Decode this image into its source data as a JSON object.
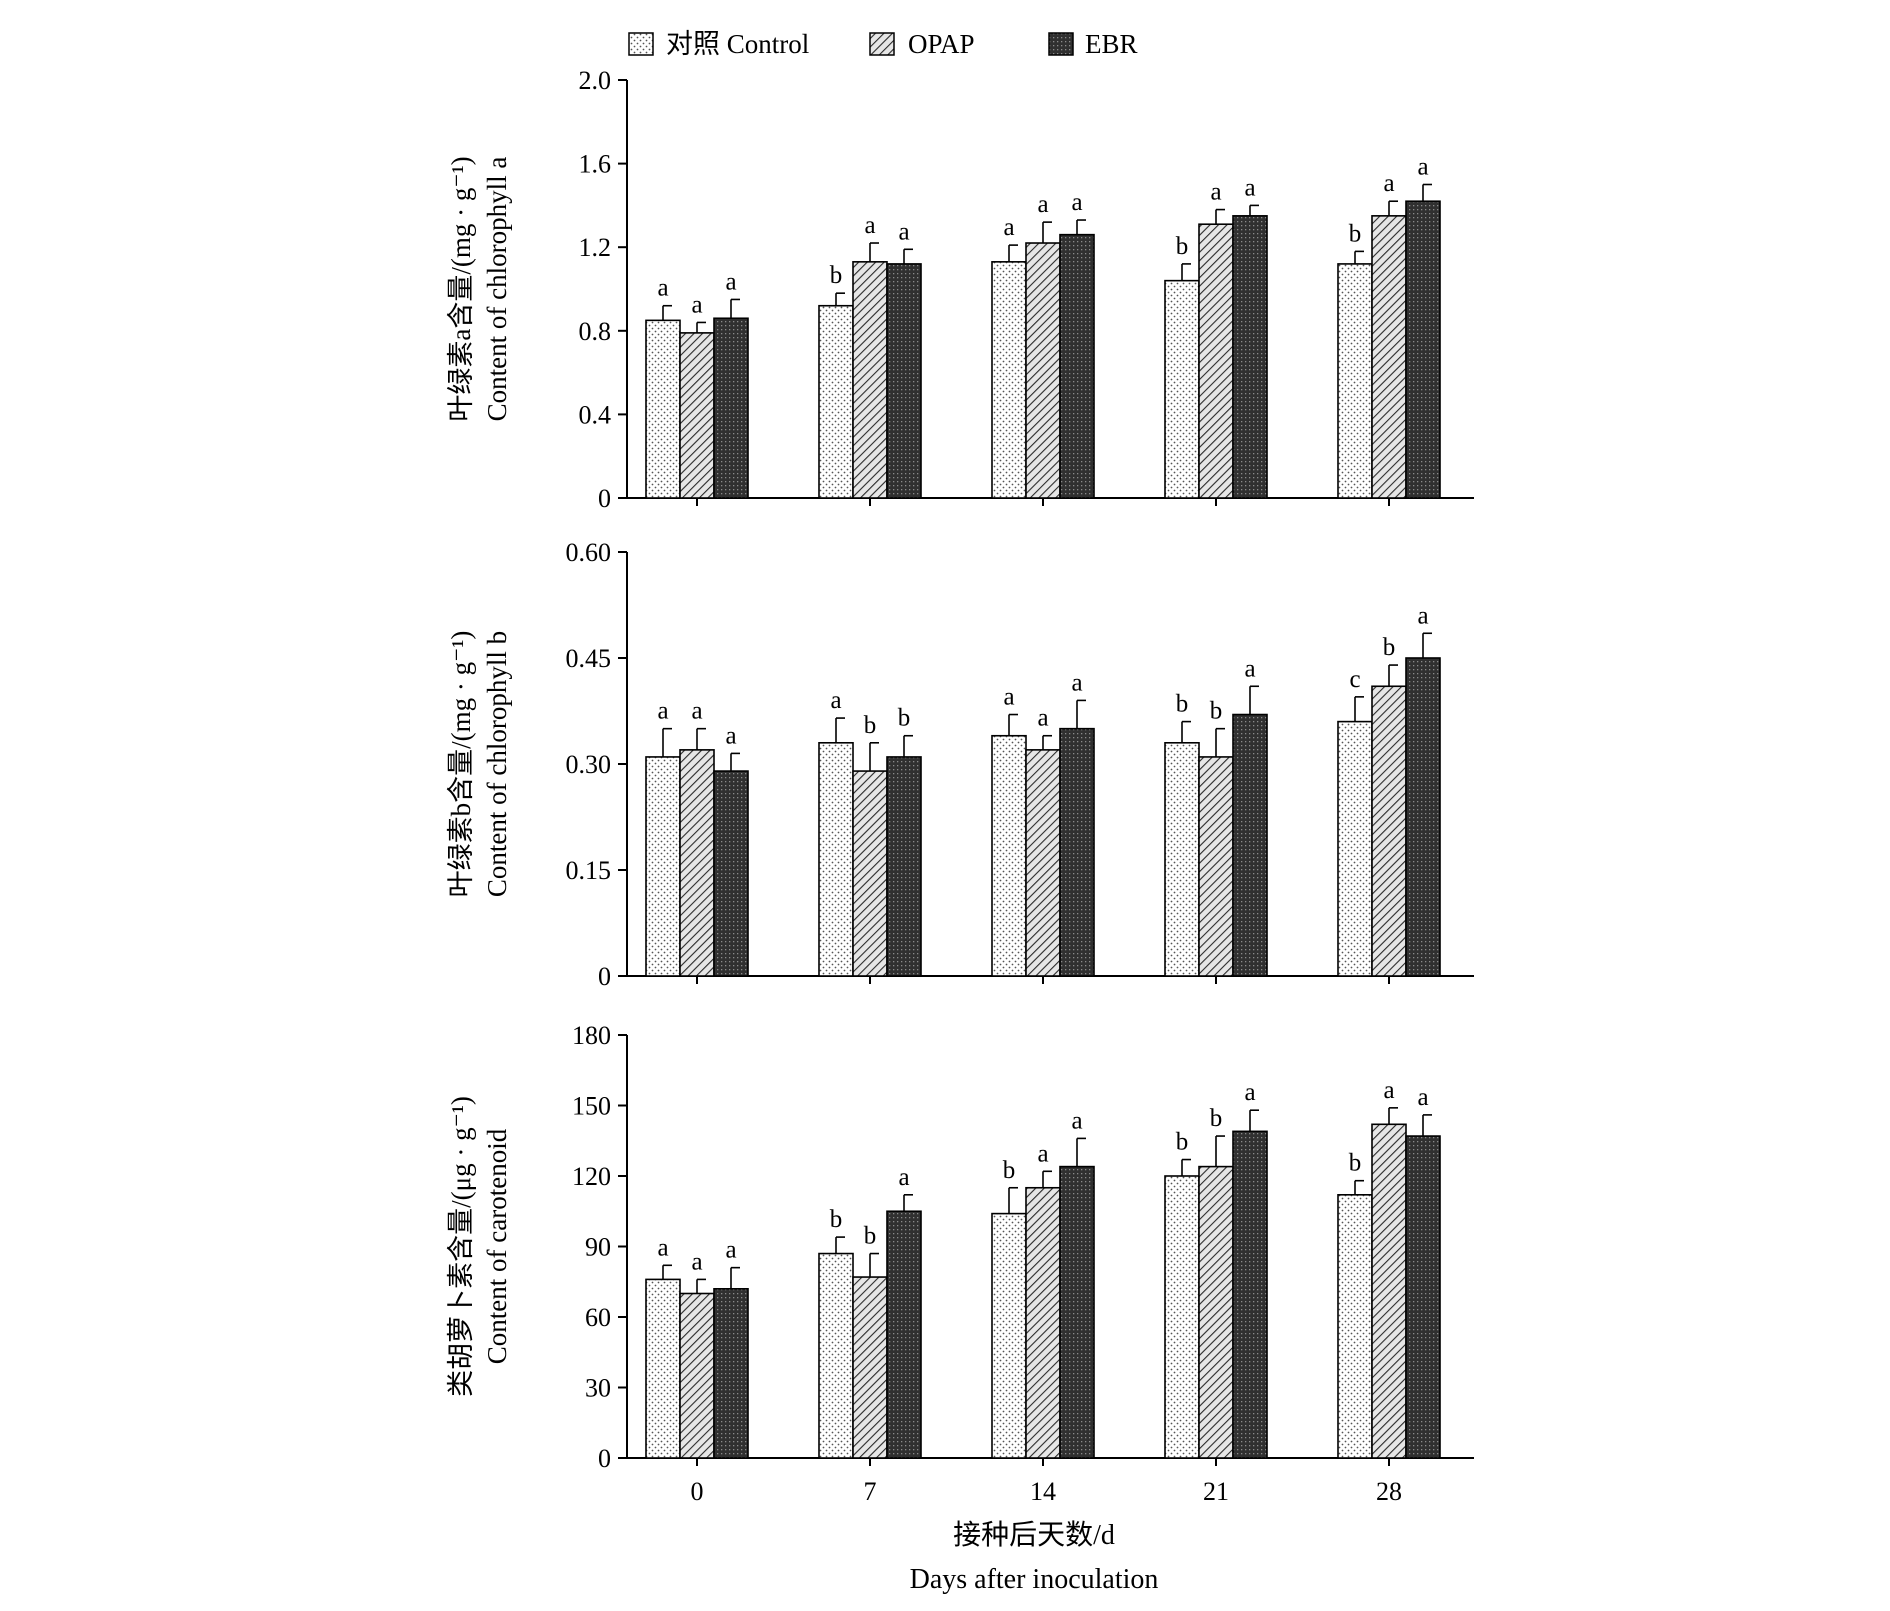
{
  "legend": {
    "items": [
      {
        "label": "对照 Control",
        "pattern": "dots"
      },
      {
        "label": "OPAP",
        "pattern": "hatch"
      },
      {
        "label": "EBR",
        "pattern": "dark"
      }
    ]
  },
  "x_axis": {
    "label_cn": "接种后天数/d",
    "label_en": "Days after inoculation"
  },
  "colors": {
    "control_fill": "#ffffff",
    "opap_stripe": "#333333",
    "ebr_fill": "#3a3a3a",
    "axis": "#000000"
  },
  "chart_data": [
    {
      "type": "bar",
      "ylabel_cn": "叶绿素a含量/(mg · g⁻¹)",
      "ylabel_en": "Content of chlorophyll a",
      "ylim": [
        0,
        2.0
      ],
      "yticks": [
        "0",
        "0.4",
        "0.8",
        "1.2",
        "1.6",
        "2.0"
      ],
      "categories": [
        "0",
        "7",
        "14",
        "21",
        "28"
      ],
      "series": [
        {
          "name": "对照 Control",
          "values": [
            0.85,
            0.92,
            1.13,
            1.04,
            1.12
          ],
          "errors": [
            0.07,
            0.06,
            0.08,
            0.08,
            0.06
          ],
          "letters": [
            "a",
            "b",
            "a",
            "b",
            "b"
          ]
        },
        {
          "name": "OPAP",
          "values": [
            0.79,
            1.13,
            1.22,
            1.31,
            1.35
          ],
          "errors": [
            0.05,
            0.09,
            0.1,
            0.07,
            0.07
          ],
          "letters": [
            "a",
            "a",
            "a",
            "a",
            "a"
          ]
        },
        {
          "name": "EBR",
          "values": [
            0.86,
            1.12,
            1.26,
            1.35,
            1.42
          ],
          "errors": [
            0.09,
            0.07,
            0.07,
            0.05,
            0.08
          ],
          "letters": [
            "a",
            "a",
            "a",
            "a",
            "a"
          ]
        }
      ]
    },
    {
      "type": "bar",
      "ylabel_cn": "叶绿素b含量/(mg · g⁻¹)",
      "ylabel_en": "Content of chlorophyll b",
      "ylim": [
        0,
        0.6
      ],
      "yticks": [
        "0",
        "0.15",
        "0.30",
        "0.45",
        "0.60"
      ],
      "categories": [
        "0",
        "7",
        "14",
        "21",
        "28"
      ],
      "series": [
        {
          "name": "对照 Control",
          "values": [
            0.31,
            0.33,
            0.34,
            0.33,
            0.36
          ],
          "errors": [
            0.04,
            0.035,
            0.03,
            0.03,
            0.035
          ],
          "letters": [
            "a",
            "a",
            "a",
            "b",
            "c"
          ]
        },
        {
          "name": "OPAP",
          "values": [
            0.32,
            0.29,
            0.32,
            0.31,
            0.41
          ],
          "errors": [
            0.03,
            0.04,
            0.02,
            0.04,
            0.03
          ],
          "letters": [
            "a",
            "b",
            "a",
            "b",
            "b"
          ]
        },
        {
          "name": "EBR",
          "values": [
            0.29,
            0.31,
            0.35,
            0.37,
            0.45
          ],
          "errors": [
            0.025,
            0.03,
            0.04,
            0.04,
            0.035
          ],
          "letters": [
            "a",
            "b",
            "a",
            "a",
            "a"
          ]
        }
      ]
    },
    {
      "type": "bar",
      "ylabel_cn": "类胡萝卜素含量/(μg · g⁻¹)",
      "ylabel_en": "Content of carotenoid",
      "ylim": [
        0,
        180
      ],
      "yticks": [
        "0",
        "30",
        "60",
        "90",
        "120",
        "150",
        "180"
      ],
      "categories": [
        "0",
        "7",
        "14",
        "21",
        "28"
      ],
      "series": [
        {
          "name": "对照 Control",
          "values": [
            76,
            87,
            104,
            120,
            112
          ],
          "errors": [
            6,
            7,
            11,
            7,
            6
          ],
          "letters": [
            "a",
            "b",
            "b",
            "b",
            "b"
          ]
        },
        {
          "name": "OPAP",
          "values": [
            70,
            77,
            115,
            124,
            142
          ],
          "errors": [
            6,
            10,
            7,
            13,
            7
          ],
          "letters": [
            "a",
            "b",
            "a",
            "b",
            "a"
          ]
        },
        {
          "name": "EBR",
          "values": [
            72,
            105,
            124,
            139,
            137
          ],
          "errors": [
            9,
            7,
            12,
            9,
            9
          ],
          "letters": [
            "a",
            "a",
            "a",
            "a",
            "a"
          ]
        }
      ]
    }
  ]
}
